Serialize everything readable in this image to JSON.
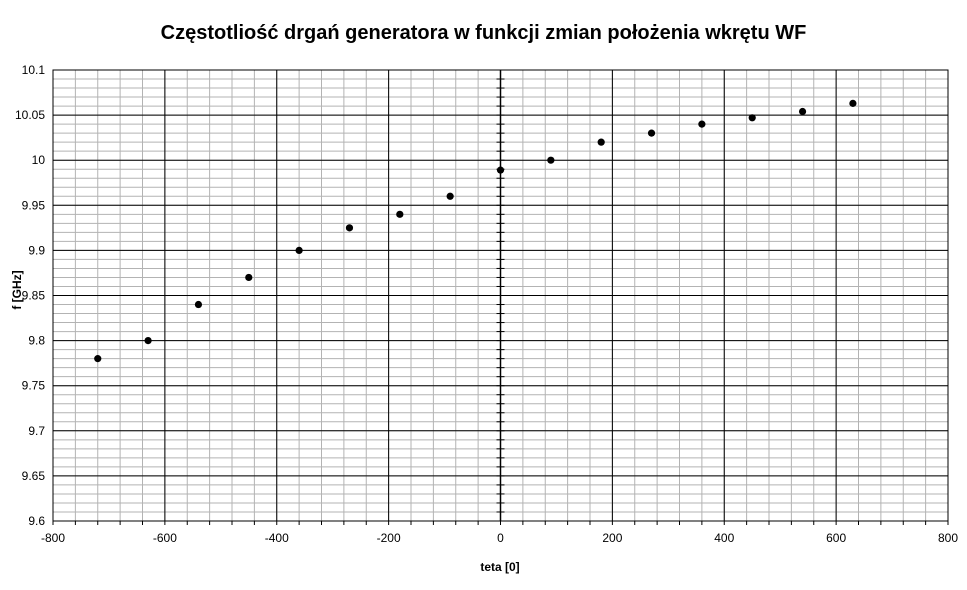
{
  "chart_data": {
    "type": "scatter",
    "title": "Częstotliość drgań generatora w funkcji zmian położenia wkrętu WF",
    "xlabel": "teta [0]",
    "ylabel": "f [GHz]",
    "xlim": [
      -800,
      800
    ],
    "ylim": [
      9.6,
      10.1
    ],
    "xticks": [
      "-800",
      "-600",
      "-400",
      "-200",
      "0",
      "200",
      "400",
      "600",
      "800"
    ],
    "yticks": [
      "9.6",
      "9.65",
      "9.7",
      "9.75",
      "9.8",
      "9.85",
      "9.9",
      "9.95",
      "10",
      "10.05",
      "10.1"
    ],
    "grid": true,
    "marker_color": "#000000",
    "series": [
      {
        "x": [
          -720,
          -630,
          -540,
          -450,
          -360,
          -270,
          -180,
          -90,
          0,
          90,
          180,
          270,
          360,
          450,
          540,
          630
        ],
        "y": [
          9.78,
          9.8,
          9.84,
          9.87,
          9.9,
          9.925,
          9.94,
          9.96,
          9.989,
          10.0,
          10.02,
          10.03,
          10.04,
          10.047,
          10.054,
          10.063
        ]
      }
    ]
  }
}
